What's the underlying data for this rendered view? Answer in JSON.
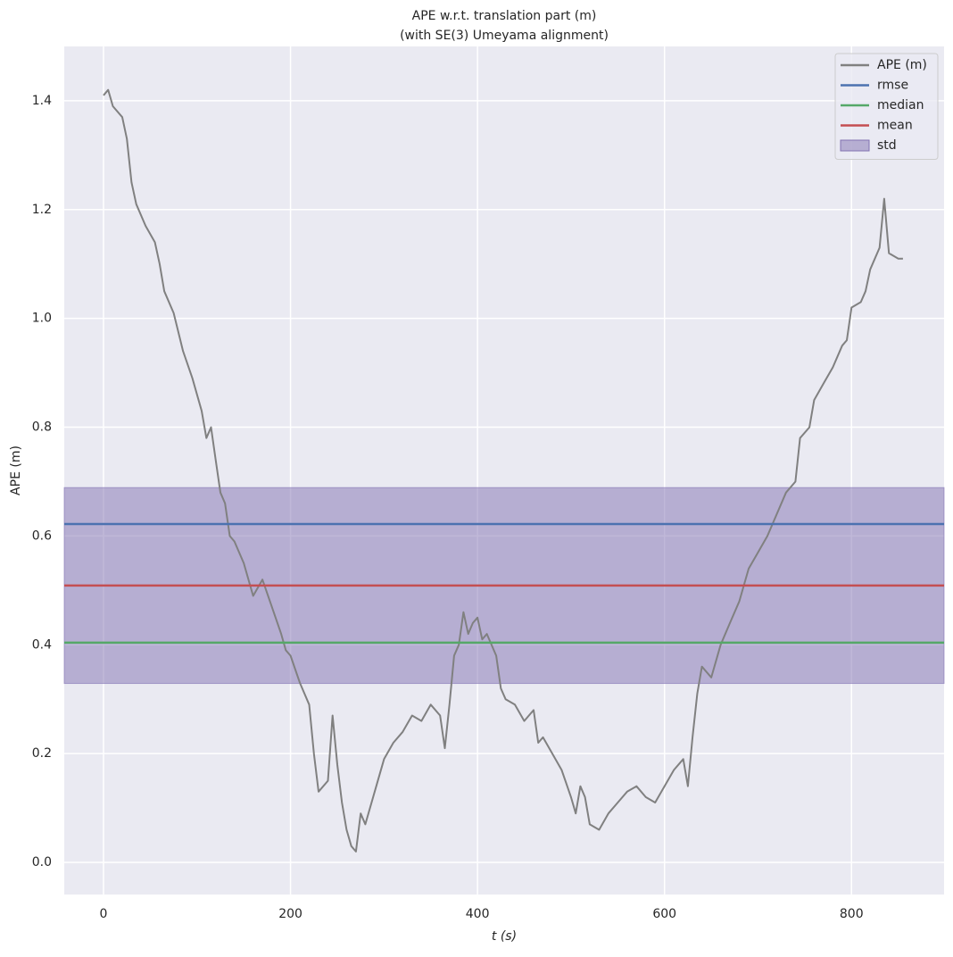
{
  "chart_data": {
    "type": "line",
    "title": "APE w.r.t. translation part (m)",
    "subtitle": "(with SE(3) Umeyama alignment)",
    "xlabel": "t (s)",
    "ylabel": "APE (m)",
    "xlim": [
      -42,
      899
    ],
    "ylim": [
      -0.059,
      1.5
    ],
    "xticks": [
      0,
      200,
      400,
      600,
      800
    ],
    "yticks": [
      {
        "value": 0,
        "label": "0.0"
      },
      0.2,
      0.4,
      0.6,
      0.8,
      {
        "value": 1,
        "label": "1.0"
      },
      1.2,
      1.4
    ],
    "grid": true,
    "legend": "upper right",
    "series": [
      {
        "name": "APE (m)",
        "color": "#808080",
        "x": [
          0,
          5,
          10,
          20,
          25,
          30,
          35,
          45,
          55,
          60,
          65,
          75,
          85,
          95,
          105,
          110,
          115,
          120,
          125,
          130,
          135,
          140,
          150,
          160,
          170,
          180,
          190,
          195,
          200,
          210,
          220,
          225,
          230,
          240,
          245,
          250,
          255,
          260,
          265,
          270,
          275,
          280,
          290,
          300,
          310,
          320,
          330,
          340,
          350,
          360,
          365,
          370,
          375,
          380,
          385,
          390,
          395,
          400,
          405,
          410,
          420,
          425,
          430,
          440,
          450,
          460,
          465,
          470,
          480,
          490,
          500,
          505,
          510,
          515,
          520,
          530,
          540,
          550,
          560,
          570,
          580,
          590,
          600,
          610,
          620,
          625,
          630,
          635,
          640,
          650,
          660,
          670,
          680,
          690,
          700,
          710,
          720,
          730,
          740,
          745,
          755,
          760,
          770,
          780,
          790,
          795,
          800,
          810,
          815,
          820,
          830,
          835,
          840,
          850,
          855
        ],
        "values": [
          1.41,
          1.42,
          1.39,
          1.37,
          1.33,
          1.25,
          1.21,
          1.17,
          1.14,
          1.1,
          1.05,
          1.01,
          0.94,
          0.89,
          0.83,
          0.78,
          0.8,
          0.74,
          0.68,
          0.66,
          0.6,
          0.59,
          0.55,
          0.49,
          0.52,
          0.47,
          0.42,
          0.39,
          0.38,
          0.33,
          0.29,
          0.2,
          0.13,
          0.15,
          0.27,
          0.18,
          0.11,
          0.06,
          0.03,
          0.02,
          0.09,
          0.07,
          0.13,
          0.19,
          0.22,
          0.24,
          0.27,
          0.26,
          0.29,
          0.27,
          0.21,
          0.29,
          0.38,
          0.4,
          0.46,
          0.42,
          0.44,
          0.45,
          0.41,
          0.42,
          0.38,
          0.32,
          0.3,
          0.29,
          0.26,
          0.28,
          0.22,
          0.23,
          0.2,
          0.17,
          0.12,
          0.09,
          0.14,
          0.12,
          0.07,
          0.06,
          0.09,
          0.11,
          0.13,
          0.14,
          0.12,
          0.11,
          0.14,
          0.17,
          0.19,
          0.14,
          0.23,
          0.31,
          0.36,
          0.34,
          0.4,
          0.44,
          0.48,
          0.54,
          0.57,
          0.6,
          0.64,
          0.68,
          0.7,
          0.78,
          0.8,
          0.85,
          0.88,
          0.91,
          0.95,
          0.96,
          1.02,
          1.03,
          1.05,
          1.09,
          1.13,
          1.22,
          1.12,
          1.11,
          1.11
        ]
      }
    ],
    "lines": [
      {
        "name": "rmse",
        "color": "#4c72b0",
        "value": 0.622
      },
      {
        "name": "median",
        "color": "#55a868",
        "value": 0.404
      },
      {
        "name": "mean",
        "color": "#c44e52",
        "value": 0.509
      }
    ],
    "band": {
      "name": "std",
      "color": "#8172b2",
      "value": 0.18
    }
  }
}
